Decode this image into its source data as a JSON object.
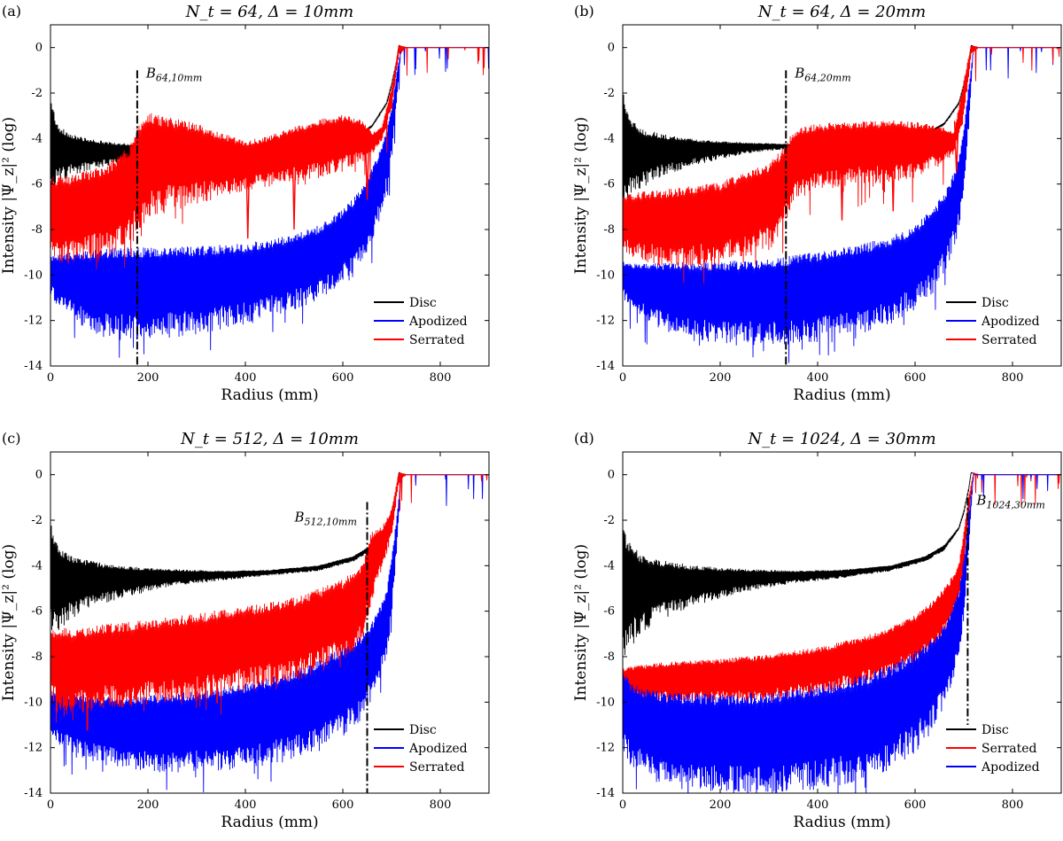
{
  "chart_data": [
    {
      "type": "line",
      "panel_label": "(a)",
      "title": "N_t = 64,  Δ = 10mm",
      "xlabel": "Radius (mm)",
      "ylabel": "Intensity |Ψ_z|² (log)",
      "xlim": [
        0,
        900
      ],
      "ylim": [
        -14,
        1
      ],
      "xticks": [
        0,
        200,
        400,
        600,
        800
      ],
      "yticks": [
        0,
        -2,
        -4,
        -6,
        -8,
        -10,
        -12,
        -14
      ],
      "legend_position": "bottom-right",
      "grid": false,
      "series": [
        {
          "name": "Disc",
          "color": "#000000",
          "style": "band",
          "x": [
            0,
            5,
            10,
            20,
            40,
            80,
            120,
            180,
            250,
            350,
            450,
            550,
            620,
            660,
            690,
            700,
            710,
            715,
            720,
            730,
            750,
            800,
            900
          ],
          "upper": [
            -2.0,
            -2.8,
            -3.2,
            -3.6,
            -3.9,
            -4.1,
            -4.2,
            -4.3,
            -4.4,
            -4.5,
            -4.55,
            -4.4,
            -4.0,
            -3.4,
            -2.4,
            -1.6,
            -0.6,
            0.1,
            0.05,
            0.0,
            0.0,
            0.0,
            0.0
          ],
          "lower": [
            -5.8,
            -5.8,
            -5.7,
            -5.6,
            -5.4,
            -5.2,
            -5.05,
            -4.9,
            -4.8,
            -4.7,
            -4.65,
            -4.5,
            -4.1,
            -3.5,
            -2.5,
            -1.7,
            -0.7,
            0.1,
            0.05,
            0.0,
            0.0,
            0.0,
            0.0
          ]
        },
        {
          "name": "Apodized",
          "color": "#0000ff",
          "style": "band",
          "x": [
            0,
            20,
            60,
            100,
            150,
            200,
            300,
            400,
            500,
            550,
            600,
            640,
            670,
            690,
            700,
            710,
            720,
            730,
            900
          ],
          "upper": [
            -9.3,
            -9.2,
            -9.1,
            -9.05,
            -9.0,
            -9.0,
            -8.95,
            -8.8,
            -8.4,
            -8.0,
            -7.3,
            -6.3,
            -5.0,
            -3.8,
            -2.8,
            -1.2,
            0.0,
            0.0,
            0.0
          ],
          "lower": [
            -10.6,
            -11.3,
            -11.7,
            -12.2,
            -12.3,
            -12.3,
            -12.1,
            -11.7,
            -11.1,
            -10.7,
            -10.0,
            -9.0,
            -7.6,
            -6.0,
            -4.5,
            -2.5,
            0.0,
            0.0,
            0.0
          ]
        },
        {
          "name": "Serrated",
          "color": "#ff0000",
          "style": "band",
          "x": [
            0,
            40,
            80,
            120,
            160,
            180,
            200,
            250,
            300,
            350,
            400,
            450,
            500,
            550,
            600,
            640,
            660,
            680,
            700,
            715,
            730,
            900
          ],
          "upper": [
            -5.9,
            -5.8,
            -5.6,
            -5.3,
            -4.6,
            -3.6,
            -3.1,
            -3.3,
            -3.5,
            -3.9,
            -4.2,
            -4.0,
            -3.6,
            -3.3,
            -3.1,
            -3.3,
            -3.8,
            -3.5,
            -1.8,
            0.1,
            0.0,
            0.0
          ],
          "lower": [
            -8.9,
            -9.0,
            -8.8,
            -8.6,
            -8.2,
            -7.5,
            -6.8,
            -6.6,
            -6.4,
            -6.2,
            -6.0,
            -5.8,
            -5.6,
            -5.4,
            -5.1,
            -4.8,
            -4.6,
            -4.0,
            -2.6,
            -0.3,
            0.0,
            0.0
          ]
        }
      ],
      "dips": [
        {
          "x": 405,
          "y": -8.4
        },
        {
          "x": 500,
          "y": -8.0
        },
        {
          "x": 650,
          "y": -6.7
        }
      ],
      "boundary": {
        "x": 178,
        "y_top": -1.0,
        "label": "B_64,10mm"
      }
    },
    {
      "type": "line",
      "panel_label": "(b)",
      "title": "N_t = 64,  Δ = 20mm",
      "xlabel": "Radius (mm)",
      "ylabel": "Intensity |Ψ_z|² (log)",
      "xlim": [
        0,
        900
      ],
      "ylim": [
        -14,
        1
      ],
      "xticks": [
        0,
        200,
        400,
        600,
        800
      ],
      "yticks": [
        0,
        -2,
        -4,
        -6,
        -8,
        -10,
        -12,
        -14
      ],
      "legend_position": "bottom-right",
      "grid": false,
      "series": [
        {
          "name": "Disc",
          "color": "#000000",
          "style": "band",
          "x": [
            0,
            5,
            10,
            20,
            40,
            80,
            150,
            250,
            350,
            450,
            550,
            620,
            660,
            690,
            700,
            710,
            715,
            720,
            730,
            750,
            900
          ],
          "upper": [
            -2.0,
            -2.8,
            -3.1,
            -3.4,
            -3.7,
            -3.9,
            -4.1,
            -4.2,
            -4.25,
            -4.2,
            -4.1,
            -3.8,
            -3.3,
            -2.4,
            -1.6,
            -0.6,
            0.1,
            0.05,
            0.0,
            0.0,
            0.0
          ],
          "lower": [
            -6.4,
            -6.4,
            -6.3,
            -6.1,
            -5.8,
            -5.4,
            -5.0,
            -4.6,
            -4.4,
            -4.3,
            -4.2,
            -3.9,
            -3.4,
            -2.5,
            -1.7,
            -0.7,
            0.1,
            0.05,
            0.0,
            0.0,
            0.0
          ]
        },
        {
          "name": "Apodized",
          "color": "#0000ff",
          "style": "band",
          "x": [
            0,
            20,
            60,
            100,
            200,
            300,
            400,
            500,
            550,
            600,
            640,
            670,
            690,
            700,
            710,
            720,
            730,
            900
          ],
          "upper": [
            -9.5,
            -9.6,
            -9.6,
            -9.6,
            -9.6,
            -9.5,
            -9.2,
            -8.8,
            -8.5,
            -8.0,
            -7.2,
            -6.2,
            -5.0,
            -3.6,
            -1.8,
            0.0,
            0.0,
            0.0
          ],
          "lower": [
            -10.8,
            -11.3,
            -11.8,
            -12.2,
            -12.5,
            -12.6,
            -12.4,
            -12.0,
            -11.6,
            -11.0,
            -10.2,
            -9.0,
            -7.6,
            -6.0,
            -3.4,
            0.0,
            0.0,
            0.0
          ]
        },
        {
          "name": "Serrated",
          "color": "#ff0000",
          "style": "band",
          "x": [
            0,
            40,
            100,
            200,
            300,
            330,
            350,
            400,
            450,
            500,
            550,
            600,
            640,
            660,
            680,
            700,
            715,
            730,
            900
          ],
          "upper": [
            -6.6,
            -6.5,
            -6.4,
            -6.1,
            -5.3,
            -4.6,
            -3.8,
            -3.5,
            -3.4,
            -3.4,
            -3.35,
            -3.4,
            -3.5,
            -3.6,
            -3.8,
            -1.5,
            0.1,
            0.0,
            0.0
          ],
          "lower": [
            -8.6,
            -9.0,
            -9.2,
            -9.1,
            -8.4,
            -7.6,
            -6.3,
            -5.9,
            -5.7,
            -5.6,
            -5.6,
            -5.4,
            -5.0,
            -4.8,
            -4.6,
            -3.0,
            -0.3,
            0.0,
            0.0
          ]
        }
      ],
      "dips": [
        {
          "x": 450,
          "y": -7.6
        },
        {
          "x": 555,
          "y": -7.2
        },
        {
          "x": 685,
          "y": -5.5
        }
      ],
      "boundary": {
        "x": 335,
        "y_top": -1.0,
        "label": "B_64,20mm"
      }
    },
    {
      "type": "line",
      "panel_label": "(c)",
      "title": "N_t = 512,  Δ = 10mm",
      "xlabel": "Radius (mm)",
      "ylabel": "Intensity |Ψ_z|² (log)",
      "xlim": [
        0,
        900
      ],
      "ylim": [
        -14,
        1
      ],
      "xticks": [
        0,
        200,
        400,
        600,
        800
      ],
      "yticks": [
        0,
        -2,
        -4,
        -6,
        -8,
        -10,
        -12,
        -14
      ],
      "legend_position": "bottom-right",
      "grid": false,
      "series": [
        {
          "name": "Disc",
          "color": "#000000",
          "style": "band",
          "x": [
            0,
            5,
            10,
            20,
            40,
            80,
            150,
            250,
            350,
            450,
            550,
            620,
            660,
            690,
            700,
            710,
            715,
            720,
            730,
            750,
            900
          ],
          "upper": [
            -2.0,
            -2.8,
            -3.1,
            -3.4,
            -3.7,
            -3.9,
            -4.1,
            -4.2,
            -4.25,
            -4.2,
            -4.0,
            -3.6,
            -3.1,
            -2.3,
            -1.6,
            -0.6,
            0.1,
            0.05,
            0.0,
            0.0,
            0.0
          ],
          "lower": [
            -6.6,
            -6.6,
            -6.5,
            -6.3,
            -6.0,
            -5.6,
            -5.2,
            -4.8,
            -4.6,
            -4.4,
            -4.2,
            -3.8,
            -3.3,
            -2.4,
            -1.7,
            -0.7,
            0.1,
            0.05,
            0.0,
            0.0,
            0.0
          ]
        },
        {
          "name": "Apodized",
          "color": "#0000ff",
          "style": "band",
          "x": [
            0,
            20,
            60,
            100,
            200,
            300,
            400,
            500,
            550,
            600,
            640,
            670,
            690,
            700,
            710,
            720,
            730,
            900
          ],
          "upper": [
            -9.6,
            -9.7,
            -9.8,
            -9.9,
            -9.9,
            -9.7,
            -9.4,
            -8.8,
            -8.3,
            -7.8,
            -7.2,
            -6.3,
            -5.2,
            -3.8,
            -2.0,
            0.0,
            0.0,
            0.0
          ],
          "lower": [
            -11.2,
            -11.6,
            -12.0,
            -12.3,
            -12.6,
            -12.6,
            -12.4,
            -12.0,
            -11.6,
            -11.0,
            -10.2,
            -9.0,
            -7.6,
            -6.0,
            -3.4,
            0.0,
            0.0,
            0.0
          ]
        },
        {
          "name": "Serrated",
          "color": "#ff0000",
          "style": "band",
          "x": [
            0,
            20,
            60,
            100,
            200,
            300,
            400,
            500,
            550,
            600,
            640,
            660,
            680,
            700,
            715,
            730,
            900
          ],
          "upper": [
            -7.0,
            -6.9,
            -7.0,
            -6.8,
            -6.6,
            -6.3,
            -6.0,
            -5.6,
            -5.2,
            -4.8,
            -4.1,
            -2.6,
            -2.4,
            -1.6,
            0.1,
            0.0,
            0.0
          ],
          "lower": [
            -9.4,
            -10.2,
            -10.0,
            -9.8,
            -9.6,
            -9.4,
            -9.0,
            -8.6,
            -8.2,
            -7.7,
            -6.8,
            -5.2,
            -4.0,
            -2.6,
            -0.3,
            0.0,
            0.0
          ]
        }
      ],
      "dips": [],
      "boundary": {
        "x": 650,
        "y_top": -1.2,
        "label": "B_512,10mm"
      }
    },
    {
      "type": "line",
      "panel_label": "(d)",
      "title": "N_t = 1024,  Δ = 30mm",
      "xlabel": "Radius (mm)",
      "ylabel": "Intensity |Ψ_z|² (log)",
      "xlim": [
        0,
        900
      ],
      "ylim": [
        -14,
        1
      ],
      "xticks": [
        0,
        200,
        400,
        600,
        800
      ],
      "yticks": [
        0,
        -2,
        -4,
        -6,
        -8,
        -10,
        -12,
        -14
      ],
      "legend_position": "bottom-right",
      "grid": false,
      "series": [
        {
          "name": "Disc",
          "color": "#000000",
          "style": "band",
          "x": [
            0,
            5,
            10,
            20,
            40,
            80,
            150,
            250,
            350,
            450,
            550,
            620,
            660,
            690,
            700,
            710,
            715,
            720,
            730,
            750,
            900
          ],
          "upper": [
            -2.0,
            -2.8,
            -3.1,
            -3.4,
            -3.7,
            -3.9,
            -4.1,
            -4.2,
            -4.25,
            -4.2,
            -4.0,
            -3.6,
            -3.1,
            -2.3,
            -1.6,
            -0.6,
            0.1,
            0.05,
            0.0,
            0.0,
            0.0
          ],
          "lower": [
            -7.4,
            -7.4,
            -7.2,
            -6.9,
            -6.5,
            -6.0,
            -5.5,
            -5.0,
            -4.7,
            -4.5,
            -4.2,
            -3.8,
            -3.3,
            -2.4,
            -1.7,
            -0.7,
            0.1,
            0.05,
            0.0,
            0.0,
            0.0
          ]
        },
        {
          "name": "Serrated",
          "color": "#ff0000",
          "style": "band",
          "x": [
            0,
            20,
            60,
            100,
            200,
            300,
            400,
            500,
            550,
            600,
            640,
            670,
            690,
            700,
            710,
            720,
            730,
            900
          ],
          "upper": [
            -8.6,
            -8.5,
            -8.4,
            -8.3,
            -8.2,
            -8.0,
            -7.7,
            -7.2,
            -6.8,
            -6.3,
            -5.6,
            -4.8,
            -4.0,
            -2.6,
            -1.0,
            0.1,
            0.0,
            0.0
          ],
          "lower": [
            -9.6,
            -9.7,
            -9.75,
            -9.8,
            -9.8,
            -9.7,
            -9.4,
            -8.9,
            -8.5,
            -8.0,
            -7.4,
            -6.5,
            -5.3,
            -3.9,
            -1.8,
            0.0,
            0.0,
            0.0
          ]
        },
        {
          "name": "Apodized",
          "color": "#0000ff",
          "style": "band",
          "x": [
            0,
            20,
            60,
            100,
            200,
            300,
            400,
            500,
            550,
            600,
            640,
            670,
            690,
            700,
            710,
            720,
            730,
            900
          ],
          "upper": [
            -8.8,
            -9.4,
            -9.7,
            -9.8,
            -9.9,
            -9.8,
            -9.5,
            -9.0,
            -8.6,
            -8.0,
            -7.3,
            -6.4,
            -5.2,
            -3.8,
            -1.8,
            0.0,
            0.0,
            0.0
          ],
          "lower": [
            -11.8,
            -12.4,
            -12.9,
            -13.2,
            -13.4,
            -13.4,
            -13.2,
            -12.8,
            -12.3,
            -11.6,
            -10.6,
            -9.2,
            -7.6,
            -6.0,
            -3.2,
            0.0,
            0.0,
            0.0
          ]
        }
      ],
      "dips": [],
      "boundary": {
        "x": 708,
        "y_top": -1.0,
        "y_bottom": -11.0,
        "label": "B_1024,30mm"
      }
    }
  ]
}
